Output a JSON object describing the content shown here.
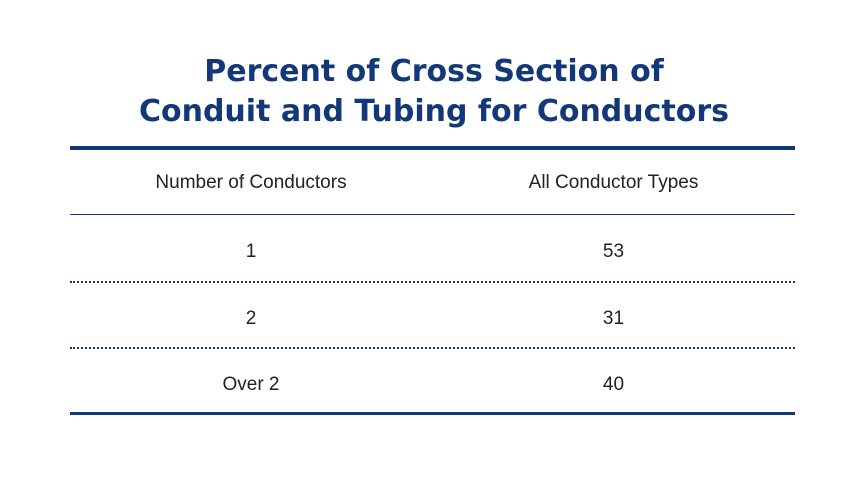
{
  "title": {
    "line1": "Percent of Cross Section of",
    "line2": "Conduit and Tubing for Conductors"
  },
  "table": {
    "headers": [
      "Number of Conductors",
      "All Conductor Types"
    ],
    "rows": [
      [
        "1",
        "53"
      ],
      [
        "2",
        "31"
      ],
      [
        "Over 2",
        "40"
      ]
    ]
  },
  "colors": {
    "accent": "#12387a",
    "text": "#222222",
    "background": "#ffffff"
  }
}
